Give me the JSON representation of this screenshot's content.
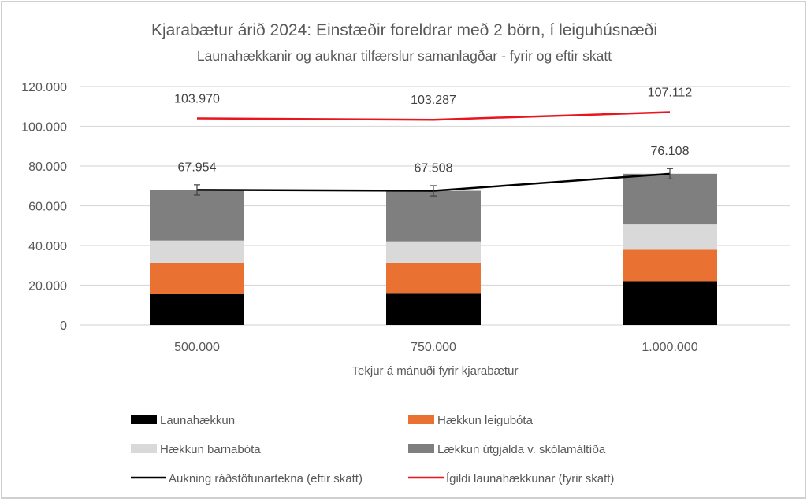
{
  "chart_data": {
    "type": "bar",
    "stacked": true,
    "title": "Kjarabætur árið 2024: Einstæðir foreldrar með 2 börn, í leiguhúsnæði",
    "subtitle": "Launahækkanir og auknar tilfærslur samanlagðar - fyrir og eftir skatt",
    "xlabel": "Tekjur á mánuði fyrir kjarabætur",
    "ylabel": "",
    "ylim": [
      0,
      120000
    ],
    "yticks": [
      0,
      20000,
      40000,
      60000,
      80000,
      100000,
      120000
    ],
    "ytick_labels": [
      "0",
      "20.000",
      "40.000",
      "60.000",
      "80.000",
      "100.000",
      "120.000"
    ],
    "grid": true,
    "legend_position": "bottom",
    "categories": [
      "500.000",
      "750.000",
      "1.000.000"
    ],
    "series": [
      {
        "name": "Launahækkun",
        "kind": "bar",
        "color": "#000000",
        "values": [
          15450,
          15700,
          22000
        ]
      },
      {
        "name": "Hækkun leigubóta",
        "kind": "bar",
        "color": "#e97132",
        "values": [
          15850,
          15600,
          15850
        ]
      },
      {
        "name": "Hækkun barnabóta",
        "kind": "bar",
        "color": "#d9d9d9",
        "values": [
          11200,
          10800,
          12800
        ]
      },
      {
        "name": "Lækkun útgjalda v. skólamáltíða",
        "kind": "bar",
        "color": "#7f7f7f",
        "values": [
          25454,
          25408,
          25458
        ]
      },
      {
        "name": "Aukning ráðstöfunartekna (eftir skatt)",
        "kind": "line",
        "color": "#000000",
        "values": [
          67954,
          67508,
          76108
        ],
        "labels": [
          "67.954",
          "67.508",
          "76.108"
        ],
        "error": 2600
      },
      {
        "name": "Ígildi launahækkunar (fyrir skatt)",
        "kind": "line",
        "color": "#e8141e",
        "values": [
          103970,
          103287,
          107112
        ],
        "labels": [
          "103.970",
          "103.287",
          "107.112"
        ]
      }
    ]
  }
}
